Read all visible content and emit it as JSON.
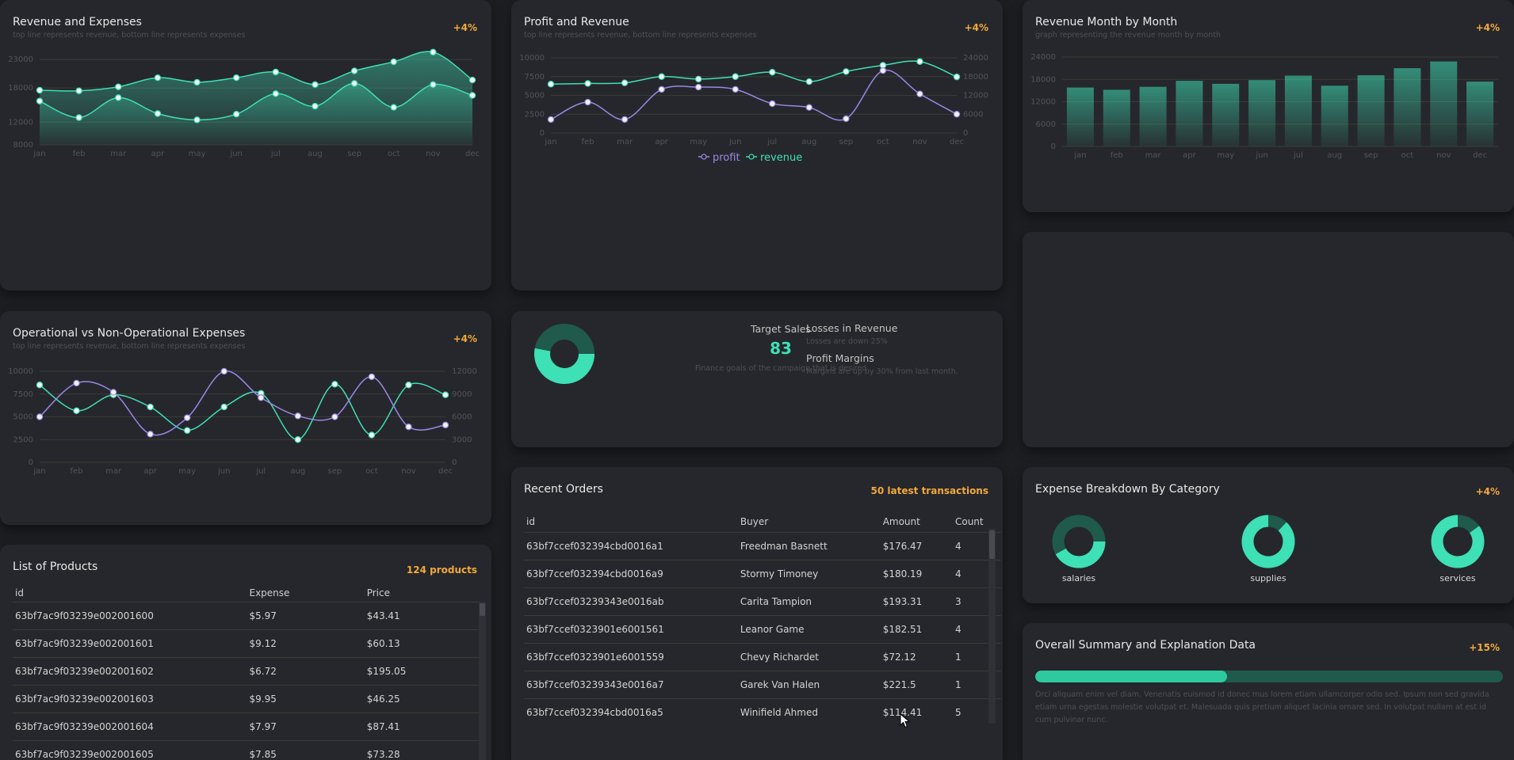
{
  "colors": {
    "teal": "#3ee0b6",
    "purple": "#9b87e8",
    "orange": "#f0a93b",
    "dark_teal": "#1f5a4c"
  },
  "months": [
    "jan",
    "feb",
    "mar",
    "apr",
    "may",
    "jun",
    "jul",
    "aug",
    "sep",
    "oct",
    "nov",
    "dec"
  ],
  "rev_exp": {
    "title": "Revenue and Expenses",
    "subtitle": "top line represents revenue, bottom line represents expenses",
    "badge": "+4%",
    "y_ticks": [
      "23000",
      "18000",
      "12000",
      "8000"
    ]
  },
  "profit_rev": {
    "title": "Profit and Revenue",
    "subtitle": "top line represents revenue, bottom line represents expenses",
    "badge": "+4%",
    "left_ticks": [
      "10000",
      "7500",
      "5000",
      "2500",
      "0"
    ],
    "right_ticks": [
      "24000",
      "18000",
      "12000",
      "6000",
      "0"
    ],
    "legend_profit": "profit",
    "legend_revenue": "revenue"
  },
  "rev_month": {
    "title": "Revenue Month by Month",
    "subtitle": "graph representing the revenue month by month",
    "badge": "+4%",
    "y_ticks": [
      "24000",
      "18000",
      "12000",
      "6000",
      "0"
    ]
  },
  "opex": {
    "title": "Operational vs Non-Operational Expenses",
    "subtitle": "top line represents revenue, bottom line represents expenses",
    "badge": "+4%",
    "left_ticks": [
      "10000",
      "7500",
      "5000",
      "2500",
      "0"
    ],
    "right_ticks": [
      "12000",
      "9000",
      "6000",
      "3000",
      "0"
    ]
  },
  "target": {
    "label": "Target Sales",
    "value": "83",
    "description": "Finance goals of the campaign that is desired",
    "donut_fraction": 0.53
  },
  "losses": {
    "title": "Losses in Revenue",
    "subtitle": "Losses are down 25%",
    "margin_title": "Profit Margins",
    "margin_subtitle": "Margins are up by 30% from last month."
  },
  "products": {
    "title": "List of Products",
    "badge": "124 products",
    "headers": {
      "id": "id",
      "expense": "Expense",
      "price": "Price"
    },
    "rows": [
      {
        "id": "63bf7ac9f03239e002001600",
        "expense": "$5.97",
        "price": "$43.41"
      },
      {
        "id": "63bf7ac9f03239e002001601",
        "expense": "$9.12",
        "price": "$60.13"
      },
      {
        "id": "63bf7ac9f03239e002001602",
        "expense": "$6.72",
        "price": "$195.05"
      },
      {
        "id": "63bf7ac9f03239e002001603",
        "expense": "$9.95",
        "price": "$46.25"
      },
      {
        "id": "63bf7ac9f03239e002001604",
        "expense": "$7.97",
        "price": "$87.41"
      },
      {
        "id": "63bf7ac9f03239e002001605",
        "expense": "$7.85",
        "price": "$73.28"
      }
    ]
  },
  "orders": {
    "title": "Recent Orders",
    "badge": "50 latest transactions",
    "headers": {
      "id": "id",
      "buyer": "Buyer",
      "amount": "Amount",
      "count": "Count"
    },
    "rows": [
      {
        "id": "63bf7ccef032394cbd0016a1",
        "buyer": "Freedman Basnett",
        "amount": "$176.47",
        "count": "4"
      },
      {
        "id": "63bf7ccef032394cbd0016a9",
        "buyer": "Stormy Timoney",
        "amount": "$180.19",
        "count": "4"
      },
      {
        "id": "63bf7ccef03239343e0016ab",
        "buyer": "Carita Tampion",
        "amount": "$193.31",
        "count": "3"
      },
      {
        "id": "63bf7ccef0323901e6001561",
        "buyer": "Leanor Game",
        "amount": "$182.51",
        "count": "4"
      },
      {
        "id": "63bf7ccef0323901e6001559",
        "buyer": "Chevy Richardet",
        "amount": "$72.12",
        "count": "1"
      },
      {
        "id": "63bf7ccef03239343e0016a7",
        "buyer": "Garek Van Halen",
        "amount": "$221.5",
        "count": "1"
      },
      {
        "id": "63bf7ccef032394cbd0016a5",
        "buyer": "Winifield Ahmed",
        "amount": "$114.41",
        "count": "5"
      }
    ]
  },
  "breakdown": {
    "title": "Expense Breakdown By Category",
    "badge": "+4%",
    "categories": [
      {
        "label": "salaries",
        "fraction": 0.42
      },
      {
        "label": "supplies",
        "fraction": 0.88
      },
      {
        "label": "services",
        "fraction": 0.85
      }
    ]
  },
  "summary": {
    "title": "Overall Summary and Explanation Data",
    "badge": "+15%",
    "progress": 0.41,
    "text": "Orci aliquam enim vel diam. Venenatis euismod id donec mus lorem etiam ullamcorper odio sed. Ipsum non sed gravida etiam urna egestas molestie volutpat et. Malesuada quis pretium aliquet lacinia ornare sed. In volutpat nullam at est id cum pulvinar nunc."
  },
  "chart_data": [
    {
      "type": "area",
      "title": "Revenue and Expenses",
      "categories": [
        "jan",
        "feb",
        "mar",
        "apr",
        "may",
        "jun",
        "jul",
        "aug",
        "sep",
        "oct",
        "nov",
        "dec"
      ],
      "ylim": [
        8000,
        24000
      ],
      "series": [
        {
          "name": "revenue",
          "values": [
            17600,
            17500,
            18200,
            19800,
            19000,
            19800,
            20800,
            18600,
            21000,
            22600,
            24300,
            19400
          ]
        },
        {
          "name": "expenses",
          "values": [
            15700,
            12800,
            16300,
            13500,
            12400,
            13400,
            17000,
            14800,
            18800,
            14600,
            18600,
            16700
          ]
        }
      ]
    },
    {
      "type": "line",
      "title": "Profit and Revenue",
      "categories": [
        "jan",
        "feb",
        "mar",
        "apr",
        "may",
        "jun",
        "jul",
        "aug",
        "sep",
        "oct",
        "nov",
        "dec"
      ],
      "series": [
        {
          "name": "profit",
          "axis": "left",
          "ylim": [
            0,
            10000
          ],
          "values": [
            1800,
            4100,
            1800,
            5800,
            6100,
            5800,
            3900,
            3400,
            1900,
            8300,
            5200,
            2500
          ]
        },
        {
          "name": "revenue",
          "axis": "right",
          "ylim": [
            0,
            24000
          ],
          "values": [
            15600,
            15800,
            16000,
            18000,
            17200,
            18000,
            19400,
            16400,
            19600,
            21600,
            22800,
            17900
          ]
        }
      ]
    },
    {
      "type": "bar",
      "title": "Revenue Month by Month",
      "categories": [
        "jan",
        "feb",
        "mar",
        "apr",
        "may",
        "jun",
        "jul",
        "aug",
        "sep",
        "oct",
        "nov",
        "dec"
      ],
      "ylim": [
        0,
        24000
      ],
      "values": [
        15800,
        15200,
        16000,
        17600,
        16800,
        17800,
        19000,
        16300,
        19100,
        21000,
        22800,
        17400
      ]
    },
    {
      "type": "line",
      "title": "Operational vs Non-Operational Expenses",
      "categories": [
        "jan",
        "feb",
        "mar",
        "apr",
        "may",
        "jun",
        "jul",
        "aug",
        "sep",
        "oct",
        "nov",
        "dec"
      ],
      "series": [
        {
          "axis": "left",
          "ylim": [
            0,
            10000
          ],
          "values": [
            5000,
            8700,
            7700,
            3100,
            4900,
            10000,
            7100,
            5100,
            5000,
            9400,
            3900,
            4100
          ]
        },
        {
          "axis": "right",
          "ylim": [
            0,
            12000
          ],
          "values": [
            10200,
            6800,
            8900,
            7300,
            4200,
            7300,
            9100,
            3000,
            10300,
            3600,
            10200,
            8900
          ]
        }
      ]
    }
  ]
}
